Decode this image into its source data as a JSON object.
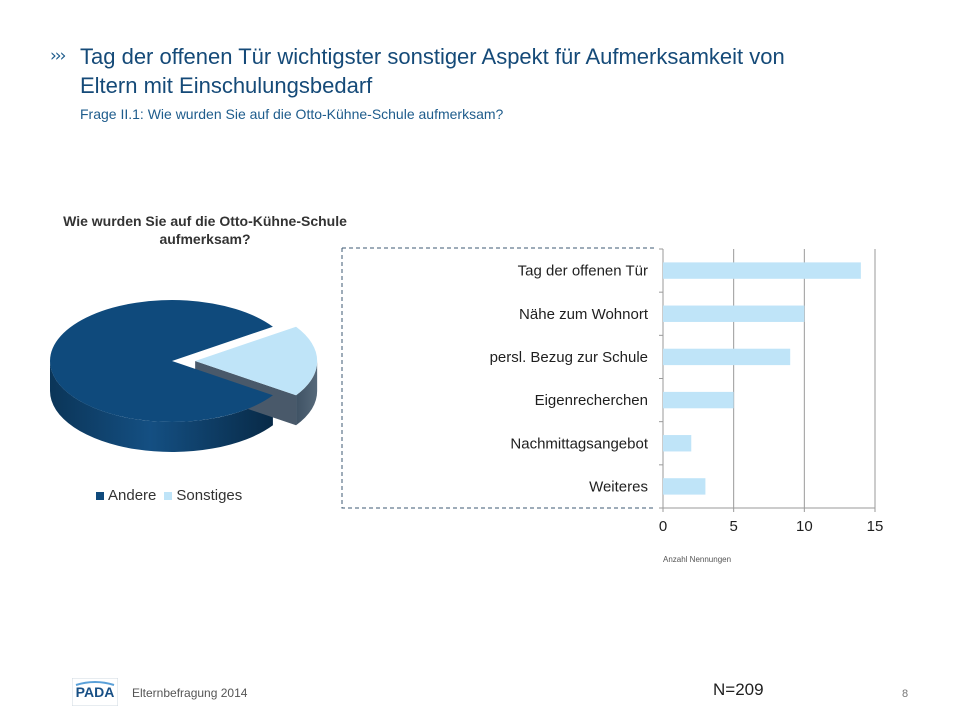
{
  "header": {
    "chevron": "›››",
    "title": "Tag der offenen Tür wichtigster sonstiger Aspekt für Aufmerksamkeit von Eltern mit Einschulungsbedarf",
    "subtitle": "Frage II.1: Wie wurden Sie auf die Otto-Kühne-Schule aufmerksam?"
  },
  "footer": {
    "logo_text": "PADA",
    "survey_label": "Elternbefragung 2014",
    "sample_size": "N=209",
    "page_number": "8"
  },
  "colors": {
    "title": "#154a78",
    "pie_andere": "#0f4a7c",
    "pie_sonstiges": "#bfe4f8",
    "bar_fill": "#bfe4f8",
    "connector": "#3c5a73"
  },
  "chart_data": [
    {
      "type": "pie",
      "title": "Wie wurden Sie auf die Otto-Kühne-Schule aufmerksam?",
      "style": "3d-exploded",
      "legend_position": "bottom",
      "slices": [
        {
          "label": "Andere",
          "value": 81
        },
        {
          "label": "Sonstiges",
          "value": 19
        }
      ]
    },
    {
      "type": "bar",
      "orientation": "horizontal",
      "categories": [
        "Tag der offenen Tür",
        "Nähe zum Wohnort",
        "persl. Bezug zur Schule",
        "Eigenrecherchen",
        "Nachmittagsangebot",
        "Weiteres"
      ],
      "values": [
        14,
        10,
        9,
        5,
        2,
        3
      ],
      "xlabel": "Anzahl Nennungen",
      "xlim": [
        0,
        15
      ],
      "xticks": [
        0,
        5,
        10,
        15
      ],
      "grid": true
    }
  ]
}
